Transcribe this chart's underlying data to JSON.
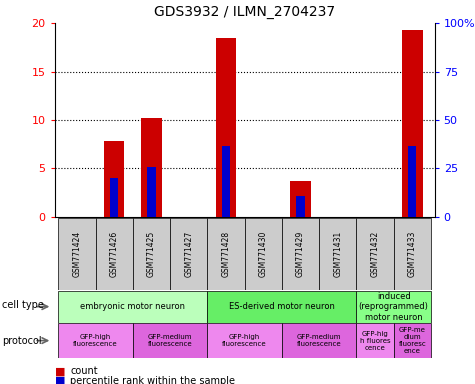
{
  "title": "GDS3932 / ILMN_2704237",
  "samples": [
    "GSM771424",
    "GSM771426",
    "GSM771425",
    "GSM771427",
    "GSM771428",
    "GSM771430",
    "GSM771429",
    "GSM771431",
    "GSM771432",
    "GSM771433"
  ],
  "counts": [
    0,
    7.8,
    10.2,
    0,
    18.5,
    0,
    3.7,
    0,
    0,
    19.3
  ],
  "percentiles": [
    0,
    20.0,
    26.0,
    0,
    36.5,
    0,
    11.0,
    0,
    0,
    36.5
  ],
  "ylim_left": [
    0,
    20
  ],
  "ylim_right": [
    0,
    100
  ],
  "yticks_left": [
    0,
    5,
    10,
    15,
    20
  ],
  "yticks_right": [
    0,
    25,
    50,
    75,
    100
  ],
  "ytick_labels_right": [
    "0",
    "25",
    "50",
    "75",
    "100%"
  ],
  "bar_color": "#cc0000",
  "percentile_color": "#0000cc",
  "cell_type_groups": [
    {
      "label": "embryonic motor neuron",
      "start": 0,
      "end": 3,
      "color": "#bbffbb"
    },
    {
      "label": "ES-derived motor neuron",
      "start": 4,
      "end": 7,
      "color": "#66ee66"
    },
    {
      "label": "induced\n(reprogrammed)\nmotor neuron",
      "start": 8,
      "end": 9,
      "color": "#88ff88"
    }
  ],
  "protocol_groups": [
    {
      "label": "GFP-high\nfluorescence",
      "start": 0,
      "end": 1,
      "color": "#ee88ee"
    },
    {
      "label": "GFP-medium\nfluorescence",
      "start": 2,
      "end": 3,
      "color": "#dd66dd"
    },
    {
      "label": "GFP-high\nfluorescence",
      "start": 4,
      "end": 5,
      "color": "#ee88ee"
    },
    {
      "label": "GFP-medium\nfluorescence",
      "start": 6,
      "end": 7,
      "color": "#dd66dd"
    },
    {
      "label": "GFP-hig\nh fluores\ncence",
      "start": 8,
      "end": 8,
      "color": "#ee88ee"
    },
    {
      "label": "GFP-me\ndium\nfluoresc\nence",
      "start": 9,
      "end": 9,
      "color": "#dd66dd"
    }
  ],
  "sample_bg_color": "#cccccc",
  "grid_color": "#000000",
  "label_fontsize": 7,
  "title_fontsize": 10,
  "bar_width": 0.55,
  "pct_bar_width": 0.22
}
